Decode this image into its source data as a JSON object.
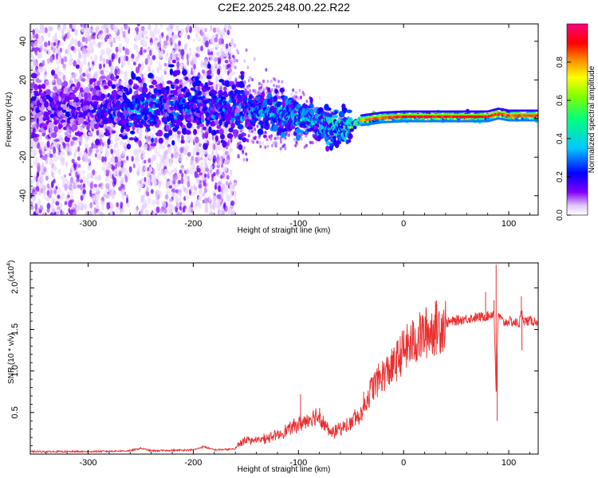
{
  "chart_data": [
    {
      "type": "heatmap",
      "title": "C2E2.2025.248.00.22.R22",
      "xlabel": "Height of straight line (km)",
      "ylabel": "Frequency (Hz)",
      "xlim": [
        -355,
        128
      ],
      "ylim": [
        -50,
        49
      ],
      "xticks": [
        -300,
        -200,
        -100,
        0,
        100
      ],
      "xtick_labels": [
        "-300",
        "-200",
        "-100",
        "0",
        "100"
      ],
      "yticks": [
        -40,
        -20,
        0,
        20,
        40
      ],
      "ytick_labels": [
        "-40",
        "-20",
        "0",
        "20",
        "40"
      ],
      "colorbar": {
        "label": "Normalized spectral amplitude",
        "range": [
          0,
          1
        ],
        "ticks": [
          0.0,
          0.2,
          0.4,
          0.6,
          0.8
        ],
        "tick_labels": [
          "0.0",
          "0.2",
          "0.4",
          "0.6",
          "0.8"
        ],
        "colormap_stops": [
          "#ffffff",
          "#8000ff",
          "#0000ff",
          "#00ffff",
          "#00ff00",
          "#ffff00",
          "#ff8000",
          "#ff0000",
          "#ff0080"
        ]
      },
      "ridge": {
        "x": [
          -300,
          -250,
          -200,
          -150,
          -120,
          -100,
          -80,
          -60,
          -50,
          -40,
          -20,
          0,
          50,
          80,
          90,
          100,
          128
        ],
        "frequency": [
          5,
          5,
          6,
          5,
          3,
          1,
          -2,
          -5,
          -4,
          -1,
          0.5,
          1,
          1,
          1,
          2.5,
          1.5,
          1.5
        ],
        "peak_amplitude": [
          0.2,
          0.35,
          0.3,
          0.35,
          0.45,
          0.45,
          0.45,
          0.55,
          0.65,
          0.8,
          0.85,
          0.9,
          0.9,
          0.9,
          0.85,
          0.85,
          0.85
        ]
      },
      "scatter_extent": {
        "wide_region_x": [
          -355,
          -160
        ],
        "gap_x": [
          -262,
          -255
        ]
      }
    },
    {
      "type": "line",
      "xlabel": "Height of straight line (km)",
      "ylabel": "SNR (10 * v/v)",
      "y_scale_label": "(x10",
      "y_scale_exponent": "4",
      "xlim": [
        -355,
        128
      ],
      "ylim": [
        0,
        2.3
      ],
      "xticks": [
        -300,
        -200,
        -100,
        0,
        100
      ],
      "xtick_labels": [
        "-300",
        "-200",
        "-100",
        "0",
        "100"
      ],
      "yticks": [
        0.5,
        1.0,
        1.5,
        2.0
      ],
      "ytick_labels": [
        "0.5",
        "1.0",
        "1.5",
        "2.0"
      ],
      "line_color": "#e83030",
      "series": [
        {
          "name": "SNR",
          "x": [
            -355,
            -300,
            -260,
            -250,
            -240,
            -200,
            -190,
            -180,
            -160,
            -150,
            -140,
            -120,
            -100,
            -90,
            -80,
            -70,
            -60,
            -50,
            -40,
            -30,
            -20,
            -10,
            0,
            20,
            40,
            60,
            80,
            86,
            88,
            90,
            95,
            100,
            110,
            112,
            115,
            128
          ],
          "y": [
            0.02,
            0.02,
            0.03,
            0.06,
            0.03,
            0.04,
            0.08,
            0.04,
            0.05,
            0.14,
            0.12,
            0.18,
            0.3,
            0.35,
            0.4,
            0.2,
            0.25,
            0.3,
            0.5,
            0.8,
            0.95,
            1.05,
            1.25,
            1.45,
            1.58,
            1.63,
            1.66,
            1.7,
            0.75,
            1.68,
            1.58,
            1.6,
            1.57,
            1.7,
            1.6,
            1.6
          ]
        }
      ],
      "spikes": [
        {
          "x": 86,
          "y": 1.85
        },
        {
          "x": 88,
          "y": 2.28
        },
        {
          "x": 89,
          "y": 0.4
        },
        {
          "x": 112,
          "y": 1.9
        },
        {
          "x": 112.5,
          "y": 1.25
        },
        {
          "x": 78,
          "y": 1.95
        },
        {
          "x": -98,
          "y": 0.72
        },
        {
          "x": -38,
          "y": 0.75
        }
      ]
    }
  ]
}
